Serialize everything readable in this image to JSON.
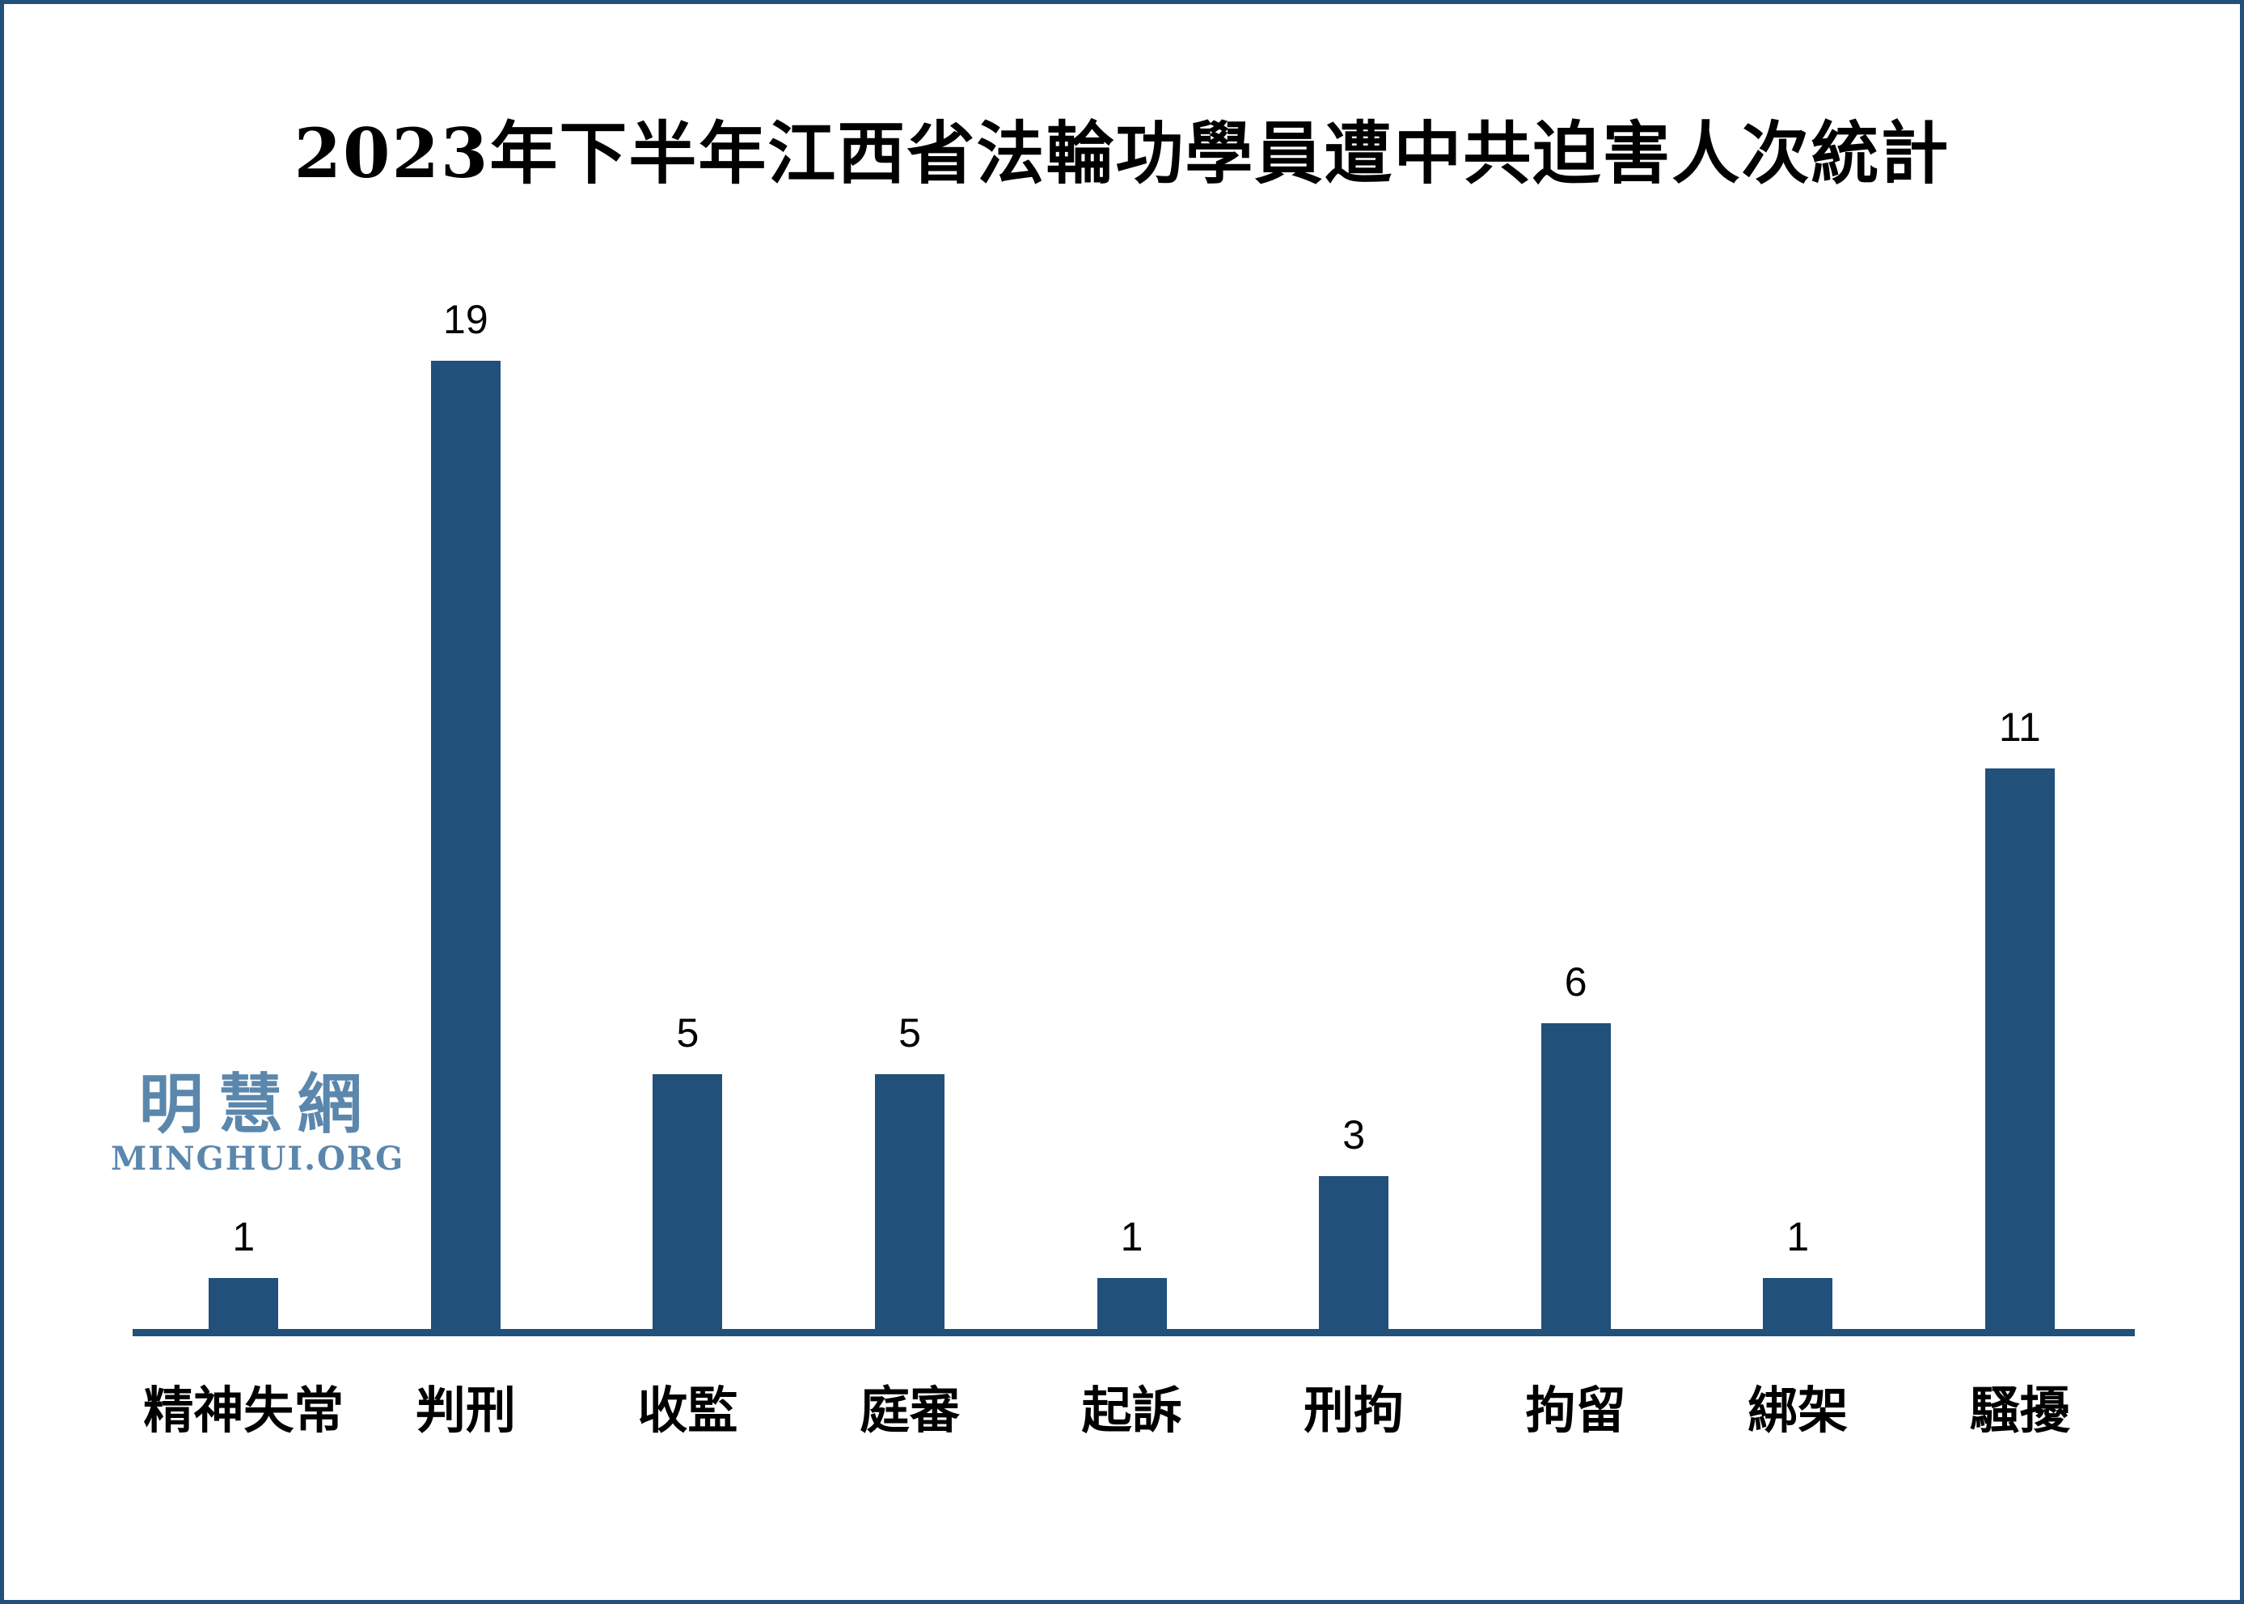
{
  "page": {
    "background_color": "#ffffff",
    "border_color": "#21507B"
  },
  "watermark": {
    "cjk": "明慧網",
    "latin": "MINGHUI.ORG",
    "color": "#5B87AD"
  },
  "chart_data": {
    "type": "bar",
    "title": "2023年下半年江西省法輪功學員遭中共迫害人次統計",
    "categories": [
      "精神失常",
      "判刑",
      "收監",
      "庭審",
      "起訴",
      "刑拘",
      "拘留",
      "綁架",
      "騷擾"
    ],
    "values": [
      1,
      19,
      5,
      5,
      1,
      3,
      6,
      1,
      11
    ],
    "bar_color": "#21507B",
    "axis_color": "#21507B",
    "value_label_color": "#000000",
    "xlabel": "",
    "ylabel": "",
    "ylim": [
      0,
      20
    ],
    "grid": false,
    "legend": false,
    "value_labels_shown": true
  }
}
